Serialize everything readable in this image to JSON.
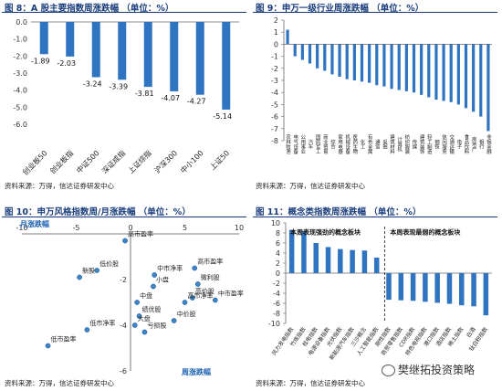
{
  "panels": [
    {
      "title": "图 8：A 股主要指数周涨跌幅 （单位：%）",
      "source": "资料来源：万得，信达证券研发中心"
    },
    {
      "title": "图 9：申万一级行业周涨跌幅 （单位：%）",
      "source": "资料来源：万得，信达证券研发中心"
    },
    {
      "title": "图 10：申万风格指数周/月涨跌幅 （单位：%）",
      "source": "资料来源：万得，信达证券研发中心"
    },
    {
      "title": "图 11：概念类指数周涨跌幅 （单位：%）",
      "source": "资料来源：万得，信达证券研发中心"
    }
  ],
  "watermark": "樊继拓投资策略",
  "colors": {
    "bar": "#2e74c0",
    "title": "#1a3d7c",
    "point": "#3a86c8"
  },
  "chart_data": [
    {
      "type": "bar",
      "title": "A 股主要指数周涨跌幅 （单位：%）",
      "categories": [
        "创业板50",
        "创业板指",
        "中证500",
        "深证成指",
        "上证综指",
        "沪深300",
        "中小100",
        "上证50"
      ],
      "values": [
        -1.89,
        -2.03,
        -3.24,
        -3.39,
        -3.81,
        -4.07,
        -4.27,
        -5.14
      ],
      "ylim": [
        -6,
        0
      ],
      "yticks": [
        "0.0",
        "-1.0",
        "-2.0",
        "-3.0",
        "-4.0",
        "-5.0",
        "-6.0"
      ]
    },
    {
      "type": "bar",
      "title": "申万一级行业周涨跌幅 （单位：%）",
      "categories": [
        "农林牧渔",
        "电气设备",
        "公用事业",
        "汽车",
        "国防军工",
        "商业贸易",
        "综合",
        "家用电器",
        "机械设备",
        "医药生物",
        "化工",
        "有色金属",
        "通信",
        "采掘",
        "建筑材料",
        "计算机",
        "纺织服装",
        "传媒",
        "建筑装饰",
        "轻工制造",
        "钢铁",
        "休闲服务",
        "交通运输",
        "电子",
        "食品饮料",
        "房地产",
        "银行",
        "非银金融"
      ],
      "values": [
        1.2,
        -1.0,
        -1.3,
        -1.6,
        -2.0,
        -2.2,
        -2.5,
        -2.7,
        -2.9,
        -3.0,
        -3.1,
        -3.2,
        -3.4,
        -3.5,
        -3.7,
        -3.8,
        -3.9,
        -4.0,
        -4.2,
        -4.4,
        -4.6,
        -4.7,
        -4.8,
        -5.0,
        -5.3,
        -5.6,
        -6.0,
        -7.2
      ],
      "ylim": [
        -8,
        2
      ],
      "yticks": [
        "2",
        "1",
        "0",
        "-1",
        "-2",
        "-3",
        "-4",
        "-5",
        "-6",
        "-7",
        "-8"
      ]
    },
    {
      "type": "scatter",
      "title": "申万风格指数周/月涨跌幅 （单位：%）",
      "xlabel": "周涨跌幅",
      "ylabel": "月涨跌幅",
      "xlim": [
        -10,
        10
      ],
      "ylim": [
        -6,
        0
      ],
      "xticks": [
        "-10",
        "-5",
        "0",
        "5",
        "10"
      ],
      "yticks": [
        "0",
        "-2",
        "-4",
        "-6"
      ],
      "points": [
        {
          "label": "高市盈率",
          "x": -0.5,
          "y": -0.3
        },
        {
          "label": "高市盈率",
          "x": 5.9,
          "y": -1.5
        },
        {
          "label": "中市净率",
          "x": 2.2,
          "y": -1.8
        },
        {
          "label": "小盘",
          "x": 2.1,
          "y": -2.3
        },
        {
          "label": "新股",
          "x": -4.7,
          "y": -1.9
        },
        {
          "label": "低价股",
          "x": -3.1,
          "y": -1.6
        },
        {
          "label": "微利股",
          "x": 6.2,
          "y": -2.2
        },
        {
          "label": "高价股",
          "x": 5.7,
          "y": -2.8
        },
        {
          "label": "高市净率",
          "x": 5.0,
          "y": -3.0
        },
        {
          "label": "中市盈率",
          "x": 7.8,
          "y": -2.9
        },
        {
          "label": "中盘",
          "x": 0.6,
          "y": -3.0
        },
        {
          "label": "低市净率",
          "x": -4.0,
          "y": -4.2
        },
        {
          "label": "绩优股",
          "x": 0.8,
          "y": -3.6
        },
        {
          "label": "大盘",
          "x": 0.4,
          "y": -4.0
        },
        {
          "label": "中价股",
          "x": 4.0,
          "y": -3.8
        },
        {
          "label": "亏损股",
          "x": 1.3,
          "y": -4.3
        },
        {
          "label": "低市盈率",
          "x": -7.6,
          "y": -4.9
        }
      ]
    },
    {
      "type": "bar",
      "title": "概念类指数周涨跌幅 （单位：%）",
      "ylim": [
        -10,
        10
      ],
      "yticks": [
        "10",
        "8",
        "6",
        "4",
        "2",
        "0",
        "-2",
        "-4",
        "-6",
        "-8",
        "-10"
      ],
      "annotations": [
        "本周表现强劲的概念板块",
        "本周表现最弱的概念板块"
      ],
      "categories": [
        "风力发电指数",
        "竹炼指数",
        "核电指数",
        "电源设备指数",
        "光伏指数",
        "新能源汽车指数",
        "三沙概念",
        "人工智能指数",
        "刚性指数",
        "商贸零售指数",
        "CDR指数",
        "特色电视指数",
        "港口指数",
        "酒店指数",
        "稀土指数",
        "白酒",
        "钛白粉指数"
      ],
      "values": [
        8.6,
        8.4,
        6.0,
        5.2,
        4.8,
        4.6,
        4.5,
        3.1,
        -5.3,
        -5.4,
        -5.5,
        -5.7,
        -5.9,
        -6.1,
        -6.4,
        -6.6,
        -8.4
      ]
    }
  ]
}
